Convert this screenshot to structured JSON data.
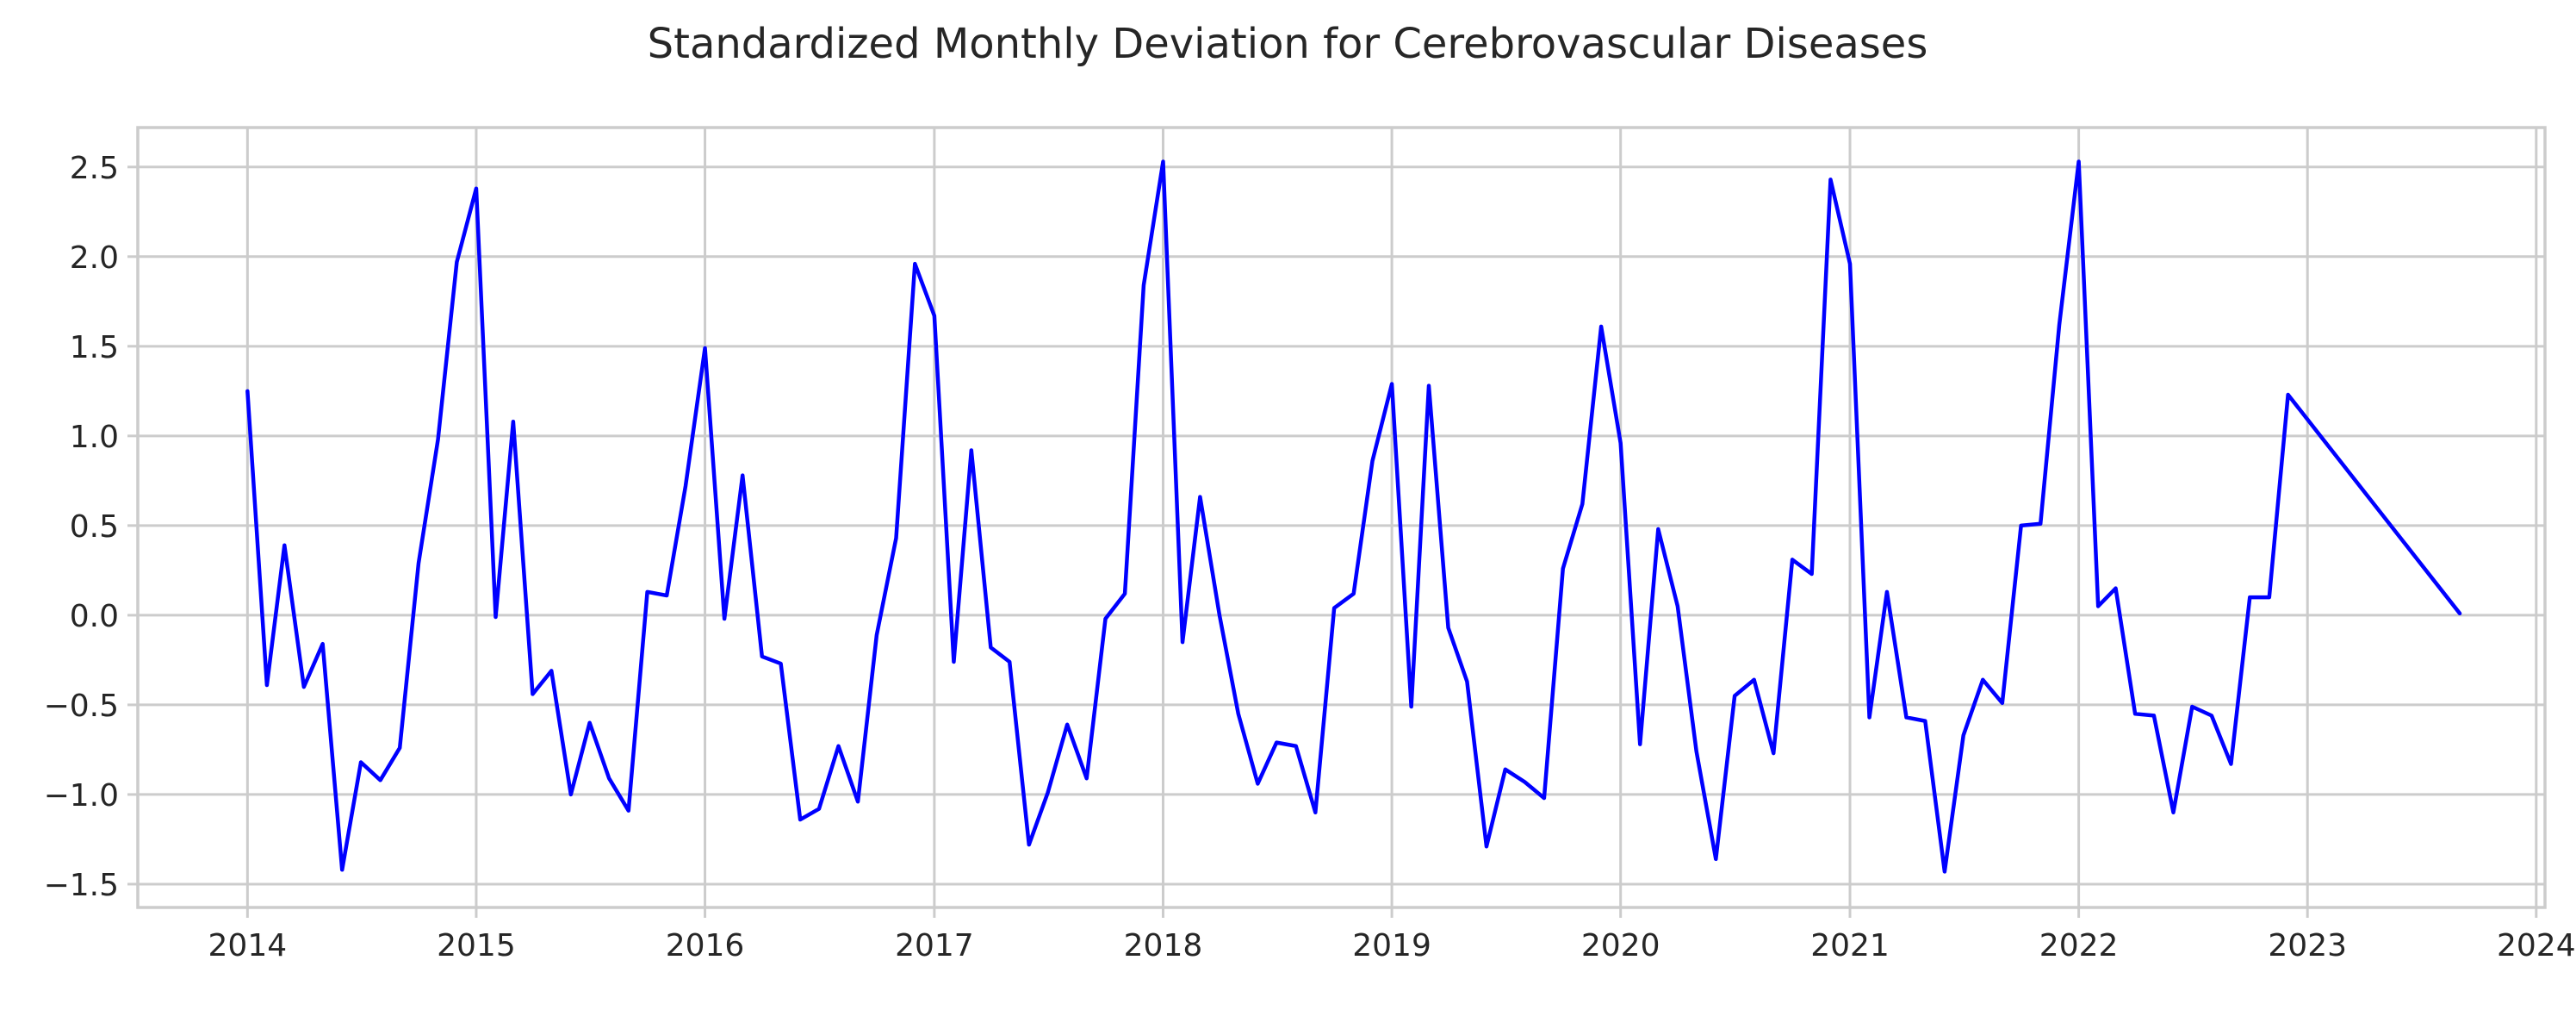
{
  "chart_data": {
    "type": "line",
    "title": "Standardized Monthly Deviation for Cerebrovascular Diseases",
    "xlabel": "",
    "ylabel": "",
    "xlim": [
      "2013-07-10",
      "2024-01-15"
    ],
    "ylim": [
      -1.63,
      2.72
    ],
    "x_ticks": [
      "2014",
      "2015",
      "2016",
      "2017",
      "2018",
      "2019",
      "2020",
      "2021",
      "2022",
      "2023",
      "2024"
    ],
    "y_ticks": [
      -1.5,
      -1.0,
      -0.5,
      0.0,
      0.5,
      1.0,
      1.5,
      2.0,
      2.5
    ],
    "y_tick_labels": [
      "−1.5",
      "−1.0",
      "−0.5",
      "0.0",
      "0.5",
      "1.0",
      "1.5",
      "2.0",
      "2.5"
    ],
    "grid": true,
    "series": [
      {
        "color": "#0000ff",
        "x": [
          "2014-01-01",
          "2014-02-01",
          "2014-03-01",
          "2014-04-01",
          "2014-05-01",
          "2014-06-01",
          "2014-07-01",
          "2014-08-01",
          "2014-09-01",
          "2014-10-01",
          "2014-11-01",
          "2014-12-01",
          "2015-01-01",
          "2015-02-01",
          "2015-03-01",
          "2015-04-01",
          "2015-05-01",
          "2015-06-01",
          "2015-07-01",
          "2015-08-01",
          "2015-09-01",
          "2015-10-01",
          "2015-11-01",
          "2015-12-01",
          "2016-01-01",
          "2016-02-01",
          "2016-03-01",
          "2016-04-01",
          "2016-05-01",
          "2016-06-01",
          "2016-07-01",
          "2016-08-01",
          "2016-09-01",
          "2016-10-01",
          "2016-11-01",
          "2016-12-01",
          "2017-01-01",
          "2017-02-01",
          "2017-03-01",
          "2017-04-01",
          "2017-05-01",
          "2017-06-01",
          "2017-07-01",
          "2017-08-01",
          "2017-09-01",
          "2017-10-01",
          "2017-11-01",
          "2017-12-01",
          "2018-01-01",
          "2018-02-01",
          "2018-03-01",
          "2018-04-01",
          "2018-05-01",
          "2018-06-01",
          "2018-07-01",
          "2018-08-01",
          "2018-09-01",
          "2018-10-01",
          "2018-11-01",
          "2018-12-01",
          "2019-01-01",
          "2019-02-01",
          "2019-03-01",
          "2019-04-01",
          "2019-05-01",
          "2019-06-01",
          "2019-07-01",
          "2019-08-01",
          "2019-09-01",
          "2019-10-01",
          "2019-11-01",
          "2019-12-01",
          "2020-01-01",
          "2020-02-01",
          "2020-03-01",
          "2020-04-01",
          "2020-05-01",
          "2020-06-01",
          "2020-07-01",
          "2020-08-01",
          "2020-09-01",
          "2020-10-01",
          "2020-11-01",
          "2020-12-01",
          "2021-01-01",
          "2021-02-01",
          "2021-03-01",
          "2021-04-01",
          "2021-05-01",
          "2021-06-01",
          "2021-07-01",
          "2021-08-01",
          "2021-09-01",
          "2021-10-01",
          "2021-11-01",
          "2021-12-01",
          "2022-01-01",
          "2022-02-01",
          "2022-03-01",
          "2022-04-01",
          "2022-05-01",
          "2022-06-01",
          "2022-07-01",
          "2022-08-01",
          "2022-09-01",
          "2022-10-01",
          "2022-11-01",
          "2022-12-01",
          "2023-09-01"
        ],
        "y": [
          1.25,
          -0.39,
          0.39,
          -0.4,
          -0.16,
          -1.42,
          -0.82,
          -0.92,
          -0.74,
          0.29,
          0.98,
          1.97,
          2.38,
          -0.01,
          1.08,
          -0.44,
          -0.31,
          -1.0,
          -0.6,
          -0.91,
          -1.09,
          0.13,
          0.11,
          0.72,
          1.49,
          -0.02,
          0.78,
          -0.23,
          -0.27,
          -1.14,
          -1.08,
          -0.73,
          -1.04,
          -0.11,
          0.43,
          1.96,
          1.67,
          -0.26,
          0.92,
          -0.18,
          -0.26,
          -1.28,
          -0.99,
          -0.61,
          -0.91,
          -0.02,
          0.12,
          1.84,
          2.53,
          -0.15,
          0.66,
          0.0,
          -0.55,
          -0.94,
          -0.71,
          -0.73,
          -1.1,
          0.04,
          0.12,
          0.86,
          1.29,
          -0.51,
          1.28,
          -0.07,
          -0.37,
          -1.29,
          -0.86,
          -0.93,
          -1.02,
          0.26,
          0.62,
          1.61,
          0.96,
          -0.72,
          0.48,
          0.05,
          -0.76,
          -1.36,
          -0.45,
          -0.36,
          -0.77,
          0.31,
          0.23,
          2.43,
          1.96,
          -0.57,
          0.13,
          -0.57,
          -0.59,
          -1.43,
          -0.67,
          -0.36,
          -0.49,
          0.5,
          0.51,
          1.62,
          2.53,
          0.05,
          0.15,
          -0.55,
          -0.56,
          -1.1,
          -0.51,
          -0.56,
          -0.83,
          0.1,
          0.1,
          1.23,
          0.01
        ]
      }
    ]
  }
}
